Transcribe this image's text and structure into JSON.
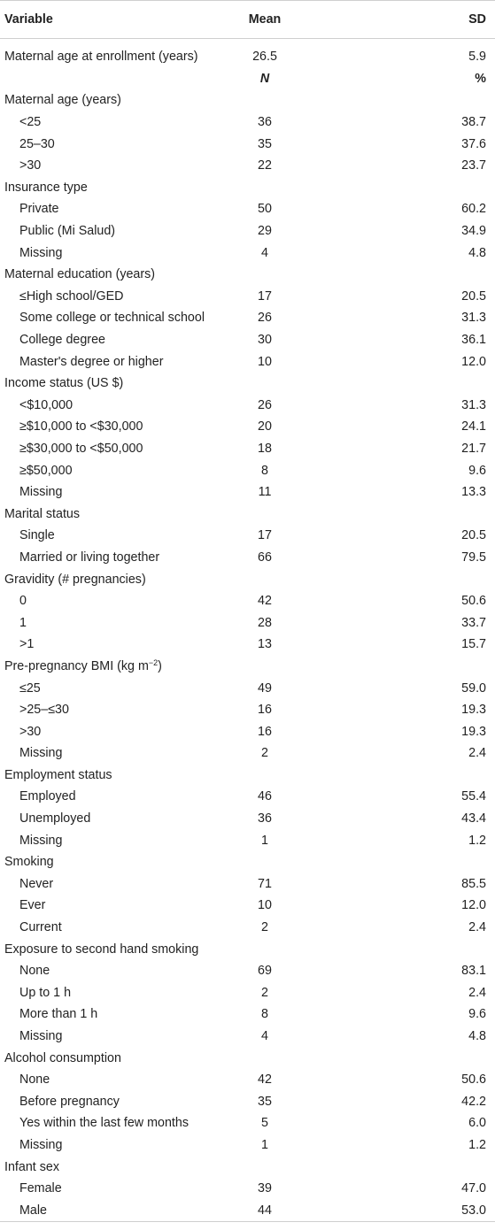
{
  "header": {
    "variable": "Variable",
    "mean": "Mean",
    "sd": "SD"
  },
  "first": {
    "label": "Maternal age at enrollment (years)",
    "mean": "26.5",
    "sd": "5.9"
  },
  "subheader": {
    "n": "N",
    "pct": "%"
  },
  "rows": [
    {
      "label": "Maternal age (years)",
      "n": "",
      "p": "",
      "cat": true
    },
    {
      "label": "<25",
      "n": "36",
      "p": "38.7"
    },
    {
      "label": "25–30",
      "n": "35",
      "p": "37.6"
    },
    {
      "label": ">30",
      "n": "22",
      "p": "23.7"
    },
    {
      "label": "Insurance type",
      "n": "",
      "p": "",
      "cat": true
    },
    {
      "label": "Private",
      "n": "50",
      "p": "60.2"
    },
    {
      "label": "Public (Mi Salud)",
      "n": "29",
      "p": "34.9"
    },
    {
      "label": "Missing",
      "n": "4",
      "p": "4.8"
    },
    {
      "label": "Maternal education (years)",
      "n": "",
      "p": "",
      "cat": true
    },
    {
      "label": "≤High school/GED",
      "n": "17",
      "p": "20.5"
    },
    {
      "label": "Some college or technical school",
      "n": "26",
      "p": "31.3"
    },
    {
      "label": "College degree",
      "n": "30",
      "p": "36.1"
    },
    {
      "label": "Master's degree or higher",
      "n": "10",
      "p": "12.0"
    },
    {
      "label": "Income status (US $)",
      "n": "",
      "p": "",
      "cat": true
    },
    {
      "label": "<$10,000",
      "n": "26",
      "p": "31.3"
    },
    {
      "label": "≥$10,000 to <$30,000",
      "n": "20",
      "p": "24.1"
    },
    {
      "label": "≥$30,000 to <$50,000",
      "n": "18",
      "p": "21.7"
    },
    {
      "label": "≥$50,000",
      "n": "8",
      "p": "9.6"
    },
    {
      "label": "Missing",
      "n": "11",
      "p": "13.3"
    },
    {
      "label": "Marital status",
      "n": "",
      "p": "",
      "cat": true
    },
    {
      "label": "Single",
      "n": "17",
      "p": "20.5"
    },
    {
      "label": "Married or living together",
      "n": "66",
      "p": "79.5"
    },
    {
      "label": "Gravidity (# pregnancies)",
      "n": "",
      "p": "",
      "cat": true
    },
    {
      "label": "0",
      "n": "42",
      "p": "50.6"
    },
    {
      "label": "1",
      "n": "28",
      "p": "33.7"
    },
    {
      "label": ">1",
      "n": "13",
      "p": "15.7"
    },
    {
      "label": "Pre-pregnancy BMI (kg m",
      "sup": "−2",
      "suffix": ")",
      "n": "",
      "p": "",
      "cat": true
    },
    {
      "label": "≤25",
      "n": "49",
      "p": "59.0"
    },
    {
      "label": ">25–≤30",
      "n": "16",
      "p": "19.3"
    },
    {
      "label": ">30",
      "n": "16",
      "p": "19.3"
    },
    {
      "label": "Missing",
      "n": "2",
      "p": "2.4"
    },
    {
      "label": "Employment status",
      "n": "",
      "p": "",
      "cat": true
    },
    {
      "label": "Employed",
      "n": "46",
      "p": "55.4"
    },
    {
      "label": "Unemployed",
      "n": "36",
      "p": "43.4"
    },
    {
      "label": "Missing",
      "n": "1",
      "p": "1.2"
    },
    {
      "label": "Smoking",
      "n": "",
      "p": "",
      "cat": true
    },
    {
      "label": "Never",
      "n": "71",
      "p": "85.5"
    },
    {
      "label": "Ever",
      "n": "10",
      "p": "12.0"
    },
    {
      "label": "Current",
      "n": "2",
      "p": "2.4"
    },
    {
      "label": "Exposure to second hand smoking",
      "n": "",
      "p": "",
      "cat": true
    },
    {
      "label": "None",
      "n": "69",
      "p": "83.1"
    },
    {
      "label": "Up to 1 h",
      "n": "2",
      "p": "2.4"
    },
    {
      "label": "More than 1 h",
      "n": "8",
      "p": "9.6"
    },
    {
      "label": "Missing",
      "n": "4",
      "p": "4.8"
    },
    {
      "label": "Alcohol consumption",
      "n": "",
      "p": "",
      "cat": true
    },
    {
      "label": "None",
      "n": "42",
      "p": "50.6"
    },
    {
      "label": "Before pregnancy",
      "n": "35",
      "p": "42.2"
    },
    {
      "label": "Yes within the last few months",
      "n": "5",
      "p": "6.0"
    },
    {
      "label": "Missing",
      "n": "1",
      "p": "1.2"
    },
    {
      "label": "Infant sex",
      "n": "",
      "p": "",
      "cat": true
    },
    {
      "label": "Female",
      "n": "39",
      "p": "47.0"
    },
    {
      "label": "Male",
      "n": "44",
      "p": "53.0"
    }
  ]
}
